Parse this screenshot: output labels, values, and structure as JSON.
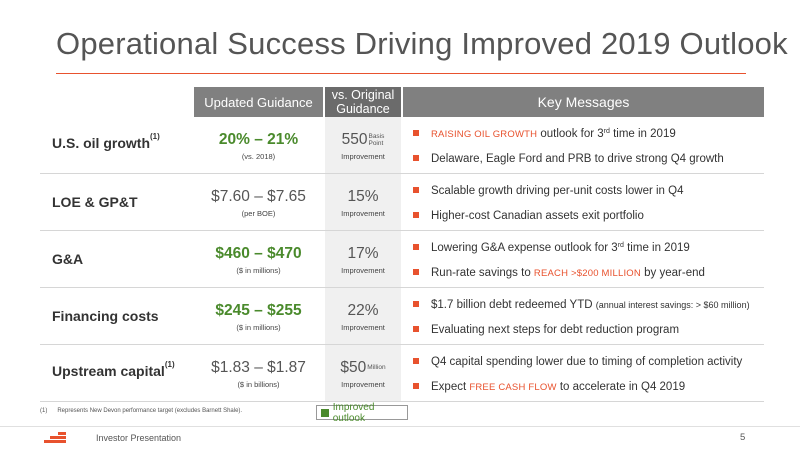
{
  "slide": {
    "title": "Operational Success Driving Improved 2019 Outlook",
    "footer_text": "Investor Presentation",
    "page_number": "5",
    "accent_color": "#e8522e",
    "positive_color": "#4a8a2c"
  },
  "table": {
    "headers": {
      "updated_guidance": "Updated Guidance",
      "original_guidance": "vs. Original Guidance",
      "key_messages": "Key Messages"
    },
    "rows": [
      {
        "label": "U.S. oil growth",
        "label_sup": "(1)",
        "guidance": "20% – 21%",
        "guidance_sub": "(vs. 2018)",
        "guidance_highlight": true,
        "orig_value": "550",
        "orig_unit_1": "Basis",
        "orig_unit_2": "Point",
        "orig_sub": "Improvement",
        "messages": [
          {
            "hl": "Raising oil growth",
            "text": " outlook for 3",
            "sup": "rd",
            "text2": " time in 2019"
          },
          {
            "text": "Delaware, Eagle Ford and PRB to drive strong Q4 growth"
          }
        ]
      },
      {
        "label": "LOE & GP&T",
        "label_sup": "",
        "guidance": "$7.60 – $7.65",
        "guidance_sub": "(per BOE)",
        "guidance_highlight": false,
        "orig_value": "15%",
        "orig_unit_1": "",
        "orig_unit_2": "",
        "orig_sub": "Improvement",
        "messages": [
          {
            "text": "Scalable growth driving per-unit costs lower in Q4"
          },
          {
            "text": "Higher-cost Canadian assets exit portfolio"
          }
        ]
      },
      {
        "label": "G&A",
        "label_sup": "",
        "guidance": "$460 – $470",
        "guidance_sub": "($ in millions)",
        "guidance_highlight": true,
        "orig_value": "17%",
        "orig_unit_1": "",
        "orig_unit_2": "",
        "orig_sub": "Improvement",
        "messages": [
          {
            "text": "Lowering G&A expense outlook for 3",
            "sup": "rd",
            "text2": " time in 2019"
          },
          {
            "text": "Run-rate savings to ",
            "hl": "reach >$200 million",
            "text2": " by year-end"
          }
        ]
      },
      {
        "label": "Financing costs",
        "label_sup": "",
        "guidance": "$245 – $255",
        "guidance_sub": "($ in millions)",
        "guidance_highlight": true,
        "orig_value": "22%",
        "orig_unit_1": "",
        "orig_unit_2": "",
        "orig_sub": "Improvement",
        "messages": [
          {
            "text": "$1.7 billion debt redeemed YTD ",
            "small": "(annual interest savings: > $60 million)"
          },
          {
            "text": "Evaluating next steps for debt reduction program"
          }
        ]
      },
      {
        "label": "Upstream capital",
        "label_sup": "(1)",
        "guidance": "$1.83 – $1.87",
        "guidance_sub": "($ in billions)",
        "guidance_highlight": false,
        "orig_value": "$50",
        "orig_unit_1": "Million",
        "orig_unit_2": "",
        "orig_sub": "Improvement",
        "messages": [
          {
            "text": "Q4 capital spending lower due to timing of completion activity"
          },
          {
            "text": "Expect ",
            "hl": "free cash flow",
            "text2": " to accelerate in Q4 2019"
          }
        ]
      }
    ]
  },
  "footnote": {
    "number": "(1)",
    "text": "Represents New Devon performance target (excludes Barnett Shale)."
  },
  "legend": {
    "label": "Improved outlook"
  }
}
